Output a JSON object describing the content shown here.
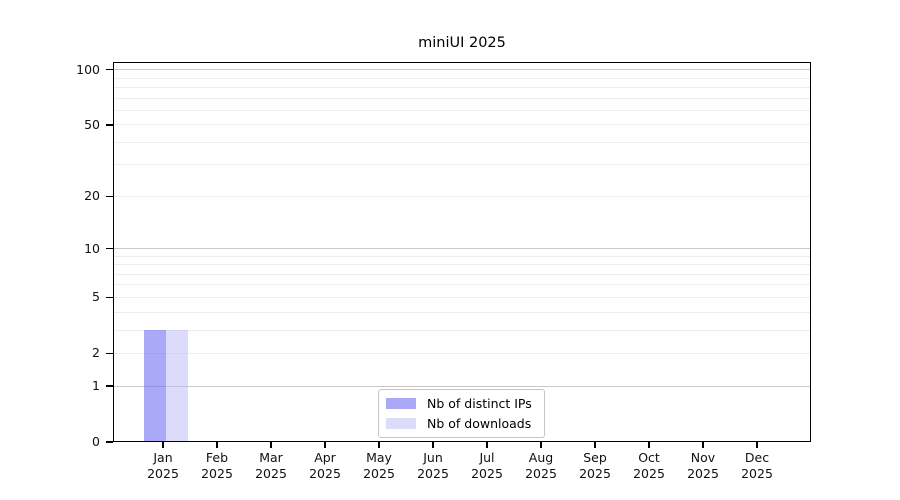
{
  "chart_data": {
    "type": "bar",
    "title": "miniUI 2025",
    "categories": [
      "Jan",
      "Feb",
      "Mar",
      "Apr",
      "May",
      "Jun",
      "Jul",
      "Aug",
      "Sep",
      "Oct",
      "Nov",
      "Dec"
    ],
    "category_year": "2025",
    "series": [
      {
        "name": "Nb of distinct IPs",
        "color": "rgba(112,112,242,0.6)",
        "values": [
          3,
          0,
          0,
          0,
          0,
          0,
          0,
          0,
          0,
          0,
          0,
          0
        ]
      },
      {
        "name": "Nb of downloads",
        "color": "rgba(185,185,245,0.5)",
        "values": [
          3,
          0,
          0,
          0,
          0,
          0,
          0,
          0,
          0,
          0,
          0,
          0
        ]
      }
    ],
    "y_scale": "log1p",
    "ylim": [
      0,
      110
    ],
    "y_ticks": [
      0,
      1,
      2,
      5,
      10,
      20,
      50,
      100
    ],
    "y_gridlines_major": [
      1,
      10,
      100
    ],
    "y_gridlines_minor": [
      2,
      3,
      4,
      5,
      6,
      7,
      8,
      9,
      20,
      30,
      40,
      50,
      60,
      70,
      80,
      90
    ],
    "grid": true,
    "legend_position": "inside-bottom-center",
    "colors": {
      "major_grid": "#c9c9c9",
      "minor_grid": "#ededed",
      "axis": "#000000",
      "background": "#ffffff"
    }
  }
}
